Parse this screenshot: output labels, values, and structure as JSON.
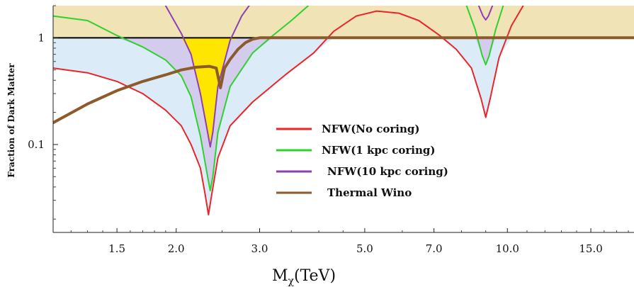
{
  "chart_data": {
    "type": "line",
    "xlabel": "M",
    "xlabel_sub": "χ",
    "xlabel_unit": "(TeV)",
    "ylabel": "Fraction of Dark Matter",
    "x_scale": "log",
    "y_scale": "log",
    "xlim": [
      1.1,
      18.5
    ],
    "ylim": [
      0.015,
      2.0
    ],
    "x_ticks": [
      {
        "value": 1.5,
        "label": "1.5"
      },
      {
        "value": 2.0,
        "label": "2.0"
      },
      {
        "value": 3.0,
        "label": "3.0"
      },
      {
        "value": 5.0,
        "label": "5.0"
      },
      {
        "value": 7.0,
        "label": "7.0"
      },
      {
        "value": 10.0,
        "label": "10.0"
      },
      {
        "value": 15.0,
        "label": "15.0"
      }
    ],
    "y_ticks": [
      {
        "value": 1,
        "label": "1"
      },
      {
        "value": 0.1,
        "label": "0.1"
      }
    ],
    "reference_line": {
      "y": 1,
      "color": "#000000"
    },
    "excluded_region": {
      "color": "#f0e3b6"
    },
    "legend_position": "center-right",
    "series": [
      {
        "name": "NFW(No coring)",
        "color": "#e8262a",
        "fill": "#dcebf8",
        "points": [
          [
            1.1,
            0.52
          ],
          [
            1.3,
            0.47
          ],
          [
            1.5,
            0.39
          ],
          [
            1.7,
            0.3
          ],
          [
            1.9,
            0.21
          ],
          [
            2.05,
            0.15
          ],
          [
            2.15,
            0.1
          ],
          [
            2.25,
            0.06
          ],
          [
            2.3,
            0.035
          ],
          [
            2.34,
            0.022
          ],
          [
            2.38,
            0.035
          ],
          [
            2.45,
            0.075
          ],
          [
            2.6,
            0.15
          ],
          [
            2.9,
            0.25
          ],
          [
            3.4,
            0.45
          ],
          [
            3.9,
            0.72
          ],
          [
            4.3,
            1.15
          ],
          [
            4.8,
            1.6
          ],
          [
            5.3,
            1.78
          ],
          [
            5.9,
            1.7
          ],
          [
            6.5,
            1.45
          ],
          [
            7.2,
            1.05
          ],
          [
            7.8,
            0.78
          ],
          [
            8.4,
            0.52
          ],
          [
            8.8,
            0.27
          ],
          [
            9.0,
            0.18
          ],
          [
            9.2,
            0.27
          ],
          [
            9.6,
            0.65
          ],
          [
            10.2,
            1.3
          ],
          [
            10.8,
            2.0
          ]
        ]
      },
      {
        "name": "NFW(1 kpc coring)",
        "color": "#2ed12e",
        "fill": "#d4ccec",
        "points": [
          [
            1.1,
            1.6
          ],
          [
            1.3,
            1.45
          ],
          [
            1.5,
            1.05
          ],
          [
            1.7,
            0.82
          ],
          [
            1.9,
            0.62
          ],
          [
            2.05,
            0.44
          ],
          [
            2.15,
            0.28
          ],
          [
            2.25,
            0.12
          ],
          [
            2.33,
            0.05
          ],
          [
            2.36,
            0.037
          ],
          [
            2.39,
            0.05
          ],
          [
            2.45,
            0.13
          ],
          [
            2.6,
            0.35
          ],
          [
            2.9,
            0.72
          ],
          [
            3.2,
            1.05
          ],
          [
            3.5,
            1.45
          ],
          [
            3.8,
            2.0
          ]
        ],
        "points_2": [
          [
            8.2,
            2.0
          ],
          [
            8.55,
            1.2
          ],
          [
            8.85,
            0.68
          ],
          [
            9.0,
            0.56
          ],
          [
            9.15,
            0.68
          ],
          [
            9.45,
            1.2
          ],
          [
            9.8,
            2.0
          ]
        ]
      },
      {
        "name": "NFW(10 kpc coring)",
        "color": "#8e3fb2",
        "fill": "#ffe600",
        "points": [
          [
            1.9,
            2.0
          ],
          [
            2.05,
            1.1
          ],
          [
            2.15,
            0.7
          ],
          [
            2.25,
            0.3
          ],
          [
            2.33,
            0.13
          ],
          [
            2.36,
            0.095
          ],
          [
            2.39,
            0.13
          ],
          [
            2.45,
            0.35
          ],
          [
            2.6,
            0.95
          ],
          [
            2.75,
            1.6
          ],
          [
            2.85,
            2.0
          ]
        ],
        "points_2": [
          [
            8.7,
            2.0
          ],
          [
            8.88,
            1.6
          ],
          [
            9.0,
            1.47
          ],
          [
            9.12,
            1.6
          ],
          [
            9.3,
            2.0
          ]
        ]
      },
      {
        "name": "Thermal Wino",
        "color": "#8c5a2b",
        "points": [
          [
            1.1,
            0.16
          ],
          [
            1.3,
            0.24
          ],
          [
            1.5,
            0.32
          ],
          [
            1.7,
            0.39
          ],
          [
            1.9,
            0.45
          ],
          [
            2.05,
            0.5
          ],
          [
            2.2,
            0.53
          ],
          [
            2.35,
            0.54
          ],
          [
            2.43,
            0.52
          ],
          [
            2.48,
            0.34
          ],
          [
            2.53,
            0.52
          ],
          [
            2.6,
            0.63
          ],
          [
            2.7,
            0.78
          ],
          [
            2.8,
            0.9
          ],
          [
            2.9,
            0.97
          ],
          [
            3.0,
            1.0
          ],
          [
            18.5,
            1.0
          ]
        ]
      }
    ]
  }
}
